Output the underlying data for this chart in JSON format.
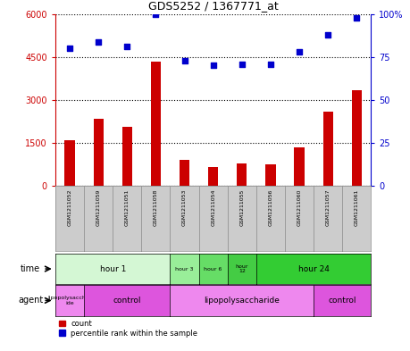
{
  "title": "GDS5252 / 1367771_at",
  "samples": [
    "GSM1211052",
    "GSM1211059",
    "GSM1211051",
    "GSM1211058",
    "GSM1211053",
    "GSM1211054",
    "GSM1211055",
    "GSM1211056",
    "GSM1211060",
    "GSM1211057",
    "GSM1211061"
  ],
  "counts": [
    1600,
    2350,
    2050,
    4350,
    900,
    650,
    800,
    750,
    1350,
    2600,
    3350
  ],
  "percentiles": [
    80,
    84,
    81,
    100,
    73,
    70,
    71,
    71,
    78,
    88,
    98
  ],
  "bar_color": "#cc0000",
  "dot_color": "#0000cc",
  "ylim_left": [
    0,
    6000
  ],
  "ylim_right": [
    0,
    100
  ],
  "yticks_left": [
    0,
    1500,
    3000,
    4500,
    6000
  ],
  "yticks_right": [
    0,
    25,
    50,
    75,
    100
  ],
  "yticklabels_right": [
    "0",
    "25",
    "50",
    "75",
    "100%"
  ],
  "time_groups": [
    {
      "label": "hour 1",
      "start": 0,
      "end": 4,
      "color": "#d4f7d4"
    },
    {
      "label": "hour 3",
      "start": 4,
      "end": 5,
      "color": "#99ee99"
    },
    {
      "label": "hour 6",
      "start": 5,
      "end": 6,
      "color": "#66dd66"
    },
    {
      "label": "hour\n12",
      "start": 6,
      "end": 7,
      "color": "#44cc44"
    },
    {
      "label": "hour 24",
      "start": 7,
      "end": 11,
      "color": "#33cc33"
    }
  ],
  "agent_groups": [
    {
      "label": "lipopolysacchar\nide",
      "start": 0,
      "end": 1,
      "color": "#ee88ee"
    },
    {
      "label": "control",
      "start": 1,
      "end": 4,
      "color": "#dd55dd"
    },
    {
      "label": "lipopolysaccharide",
      "start": 4,
      "end": 9,
      "color": "#ee88ee"
    },
    {
      "label": "control",
      "start": 9,
      "end": 11,
      "color": "#dd55dd"
    }
  ],
  "left_axis_color": "#cc0000",
  "right_axis_color": "#0000cc",
  "sample_cell_color": "#cccccc",
  "sample_cell_border": "#888888"
}
